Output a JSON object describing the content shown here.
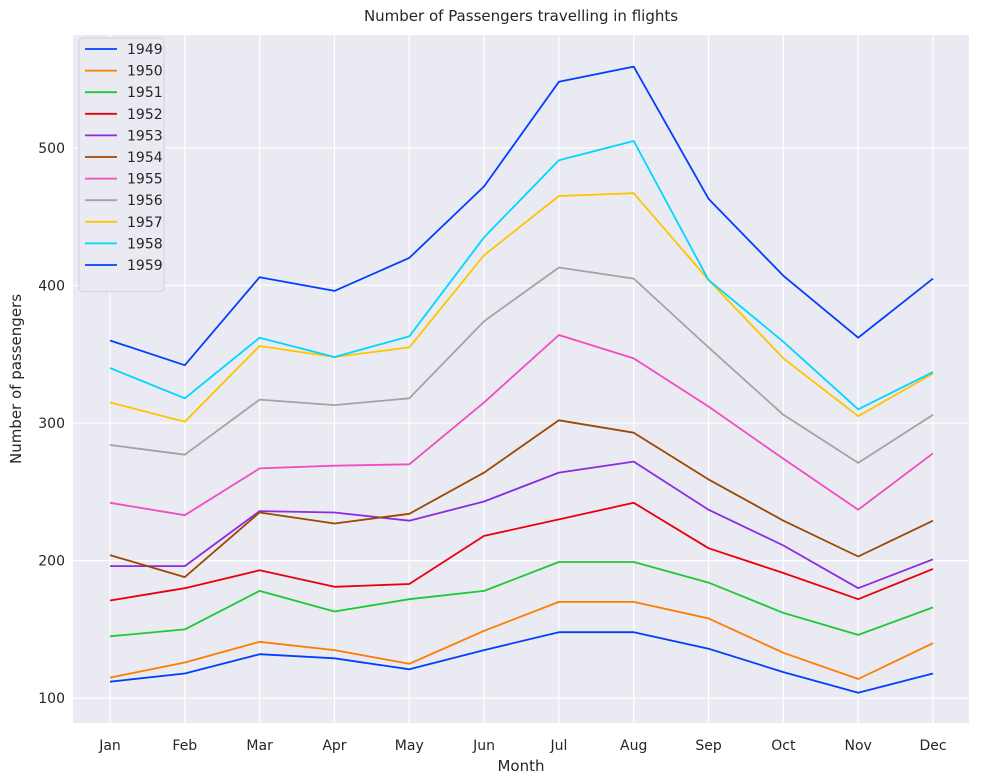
{
  "chart_data": {
    "type": "line",
    "title": "Number of Passengers travelling in flights",
    "xlabel": "Month",
    "ylabel": "Number of passengers",
    "categories": [
      "Jan",
      "Feb",
      "Mar",
      "Apr",
      "May",
      "Jun",
      "Jul",
      "Aug",
      "Sep",
      "Oct",
      "Nov",
      "Dec"
    ],
    "yticks": [
      100,
      200,
      300,
      400,
      500
    ],
    "ylim": [
      82,
      582
    ],
    "grid": true,
    "legend": "top-left",
    "series": [
      {
        "name": "1949",
        "color": "#023eff",
        "values": [
          112,
          118,
          132,
          129,
          121,
          135,
          148,
          148,
          136,
          119,
          104,
          118
        ]
      },
      {
        "name": "1950",
        "color": "#ff7c00",
        "values": [
          115,
          126,
          141,
          135,
          125,
          149,
          170,
          170,
          158,
          133,
          114,
          140
        ]
      },
      {
        "name": "1951",
        "color": "#1ac938",
        "values": [
          145,
          150,
          178,
          163,
          172,
          178,
          199,
          199,
          184,
          162,
          146,
          166
        ]
      },
      {
        "name": "1952",
        "color": "#e8000b",
        "values": [
          171,
          180,
          193,
          181,
          183,
          218,
          230,
          242,
          209,
          191,
          172,
          194
        ]
      },
      {
        "name": "1953",
        "color": "#8b2be2",
        "values": [
          196,
          196,
          236,
          235,
          229,
          243,
          264,
          272,
          237,
          211,
          180,
          201
        ]
      },
      {
        "name": "1954",
        "color": "#9f4800",
        "values": [
          204,
          188,
          235,
          227,
          234,
          264,
          302,
          293,
          259,
          229,
          203,
          229
        ]
      },
      {
        "name": "1955",
        "color": "#f14cc1",
        "values": [
          242,
          233,
          267,
          269,
          270,
          315,
          364,
          347,
          312,
          274,
          237,
          278
        ]
      },
      {
        "name": "1956",
        "color": "#a3a3a3",
        "values": [
          284,
          277,
          317,
          313,
          318,
          374,
          413,
          405,
          355,
          306,
          271,
          306
        ]
      },
      {
        "name": "1957",
        "color": "#ffc400",
        "values": [
          315,
          301,
          356,
          348,
          355,
          422,
          465,
          467,
          404,
          347,
          305,
          336
        ]
      },
      {
        "name": "1958",
        "color": "#00d7ff",
        "values": [
          340,
          318,
          362,
          348,
          363,
          435,
          491,
          505,
          404,
          359,
          310,
          337
        ]
      },
      {
        "name": "1959",
        "color": "#023eff",
        "values": [
          360,
          342,
          406,
          396,
          420,
          472,
          548,
          559,
          463,
          407,
          362,
          405
        ]
      }
    ]
  }
}
